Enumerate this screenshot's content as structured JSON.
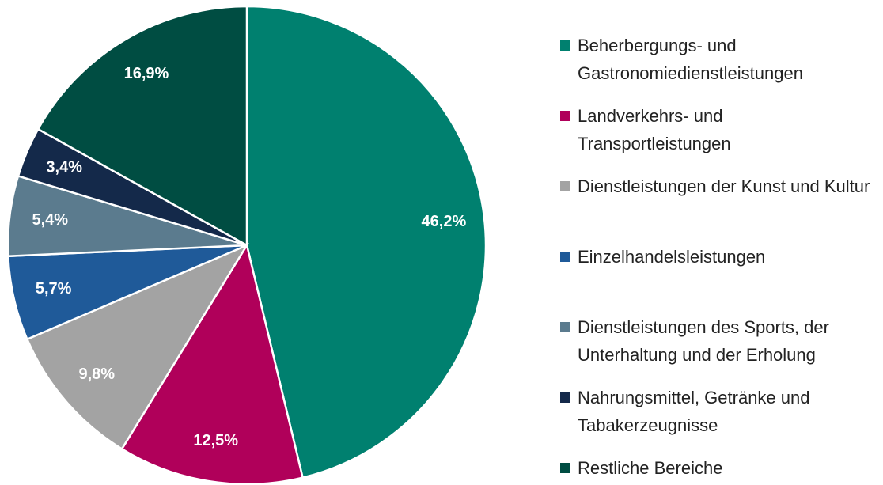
{
  "chart_data": {
    "type": "pie",
    "categories": [
      "Beherbergungs-  und Gastronomiedienstleistungen",
      "Landverkehrs- und Transportleistungen",
      "Dienstleistungen der Kunst und Kultur",
      "Einzelhandelsleistungen",
      "Dienstleistungen des Sports, der Unterhaltung und der Erholung",
      "Nahrungsmittel, Getränke und Tabakerzeugnisse",
      "Restliche Bereiche"
    ],
    "values": [
      46.2,
      12.5,
      9.8,
      5.7,
      5.4,
      3.4,
      16.9
    ],
    "value_labels": [
      "46,2%",
      "12,5%",
      "9,8%",
      "5,7%",
      "5,4%",
      "3,4%",
      "16,9%"
    ],
    "colors": [
      "#00806f",
      "#b0005a",
      "#a3a3a3",
      "#1f5a99",
      "#5b7b8e",
      "#14294a",
      "#004d42"
    ],
    "legend": "right"
  }
}
